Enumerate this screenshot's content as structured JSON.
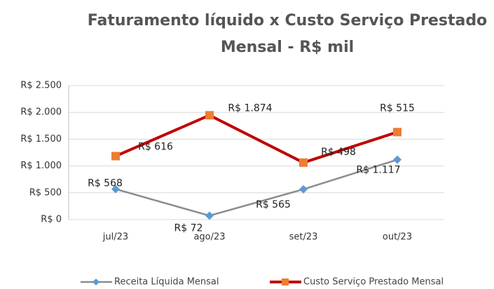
{
  "chart_data": {
    "type": "line",
    "stacked": true,
    "title": [
      "Faturamento líquido x Custo Serviço Prestado",
      "Mensal - R$ mil"
    ],
    "categories": [
      "jul/23",
      "ago/23",
      "set/23",
      "out/23"
    ],
    "series": [
      {
        "name": "Receita Líquida Mensal",
        "color": "#8c8c8c",
        "marker_color": "#5b9bd5",
        "marker": "diamond",
        "values": [
          568,
          72,
          565,
          1117
        ],
        "value_labels": [
          "R$ 568",
          "R$ 72",
          "R$ 565",
          "R$ 1.117"
        ]
      },
      {
        "name": "Custo Serviço Prestado Mensal",
        "color": "#c00000",
        "marker_color": "#ed7d31",
        "marker": "square",
        "values": [
          616,
          1874,
          498,
          515
        ],
        "value_labels": [
          "R$ 616",
          "R$ 1.874",
          "R$ 498",
          "R$ 515"
        ]
      }
    ],
    "ylim": [
      0,
      2500
    ],
    "yticks": [
      {
        "value": 0,
        "label": "R$ 0"
      },
      {
        "value": 500,
        "label": "R$ 500"
      },
      {
        "value": 1000,
        "label": "R$ 1.000"
      },
      {
        "value": 1500,
        "label": "R$ 1.500"
      },
      {
        "value": 2000,
        "label": "R$ 2.000"
      },
      {
        "value": 2500,
        "label": "R$ 2.500"
      }
    ],
    "grid": true,
    "legend": "bottom"
  }
}
